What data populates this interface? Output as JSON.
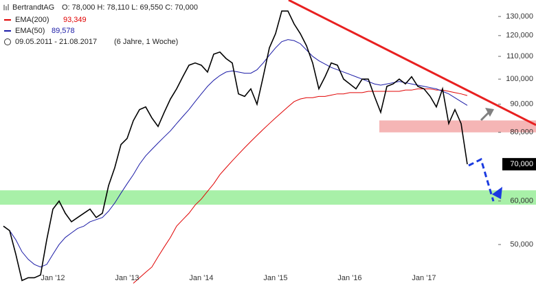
{
  "chart_data": {
    "type": "line",
    "log_scale": true,
    "title": "BertrandtAG",
    "ohlc": "O: 78,000  H: 78,110  L: 69,550  C: 70,000",
    "period": "09.05.2011 - 21.08.2017",
    "period_note": "(6 Jahre, 1 Woche)",
    "last_price_label": {
      "value": 70000,
      "label": "70,000"
    },
    "categories": [
      null,
      null,
      null,
      null,
      null,
      null,
      null,
      null,
      "Jan '12",
      null,
      null,
      null,
      null,
      null,
      null,
      null,
      null,
      null,
      null,
      null,
      "Jan '13",
      null,
      null,
      null,
      null,
      null,
      null,
      null,
      null,
      null,
      null,
      null,
      "Jan '14",
      null,
      null,
      null,
      null,
      null,
      null,
      null,
      null,
      null,
      null,
      null,
      "Jan '15",
      null,
      null,
      null,
      null,
      null,
      null,
      null,
      null,
      null,
      null,
      null,
      "Jan '16",
      null,
      null,
      null,
      null,
      null,
      null,
      null,
      null,
      null,
      null,
      null,
      "Jan '17",
      null,
      null,
      null,
      null,
      null,
      null,
      null
    ],
    "series": [
      {
        "name": "BertrandtAG",
        "color": "#000000",
        "values": [
          54000,
          53000,
          48000,
          43000,
          43500,
          43500,
          44000,
          51000,
          58000,
          60000,
          57000,
          55000,
          56000,
          57000,
          58000,
          56000,
          57000,
          64000,
          69000,
          76000,
          78000,
          84000,
          88000,
          89000,
          85000,
          82000,
          87000,
          92000,
          96000,
          101000,
          106000,
          107000,
          106000,
          103000,
          111000,
          112000,
          109000,
          107000,
          94000,
          93000,
          96000,
          90000,
          101000,
          114000,
          121000,
          133000,
          133000,
          126000,
          121000,
          115000,
          107000,
          96000,
          101000,
          107000,
          106000,
          100000,
          98000,
          96000,
          100000,
          100000,
          93000,
          87000,
          97000,
          98000,
          100000,
          98000,
          101000,
          97000,
          96000,
          93000,
          89000,
          96000,
          83000,
          88000,
          83000,
          70000
        ]
      },
      {
        "name": "EMA(200)",
        "color": "#e00000",
        "value_label": "93,349",
        "values": [
          null,
          null,
          null,
          null,
          null,
          null,
          null,
          null,
          null,
          null,
          null,
          null,
          null,
          null,
          null,
          null,
          null,
          null,
          null,
          null,
          null,
          42500,
          43500,
          44500,
          45500,
          47500,
          49500,
          51500,
          54000,
          55500,
          57000,
          59000,
          60500,
          62500,
          64500,
          67000,
          69000,
          71000,
          73000,
          75000,
          77000,
          79000,
          81000,
          83000,
          85000,
          87000,
          89000,
          91000,
          92000,
          92500,
          92500,
          93000,
          93000,
          93500,
          94000,
          94000,
          94500,
          94500,
          94500,
          95000,
          95000,
          95000,
          95000,
          95000,
          95000,
          95500,
          95500,
          96000,
          96000,
          96000,
          95500,
          95500,
          95000,
          94500,
          94000,
          93349
        ]
      },
      {
        "name": "EMA(50)",
        "color": "#1a1aa6",
        "value_label": "89,578",
        "values": [
          54000,
          53000,
          51000,
          48500,
          47000,
          46000,
          45500,
          46000,
          48000,
          50000,
          51500,
          52500,
          53500,
          54000,
          55000,
          55500,
          56000,
          57500,
          59500,
          62000,
          64500,
          67000,
          70000,
          72500,
          74500,
          76500,
          78500,
          80500,
          83000,
          85500,
          88000,
          91000,
          94000,
          97000,
          99500,
          101500,
          103000,
          103500,
          103000,
          102500,
          102500,
          104000,
          107000,
          110500,
          114000,
          117000,
          118000,
          117500,
          116000,
          113000,
          110000,
          108000,
          106500,
          105000,
          104000,
          103000,
          102000,
          101000,
          100000,
          99000,
          98000,
          97500,
          98000,
          98500,
          99000,
          98500,
          98000,
          97500,
          97000,
          96500,
          96000,
          95000,
          94000,
          92500,
          91000,
          89578
        ]
      }
    ],
    "zones": [
      {
        "range": [
          59080,
          62750
        ],
        "color": "#a8f0a8"
      },
      {
        "range": [
          80000,
          84100
        ],
        "color": "#f5b5b5"
      }
    ],
    "ylim": [
      42200,
      139300
    ],
    "yticks": [
      {
        "value": 50000,
        "label": "50,000"
      },
      {
        "value": 60000,
        "label": "60,000"
      },
      {
        "value": 80000,
        "label": "80,000"
      },
      {
        "value": 90000,
        "label": "90,000"
      },
      {
        "value": 100000,
        "label": "100,000"
      },
      {
        "value": 110000,
        "label": "110,000"
      },
      {
        "value": 120000,
        "label": "120,000"
      },
      {
        "value": 130000,
        "label": "130,000"
      }
    ]
  }
}
